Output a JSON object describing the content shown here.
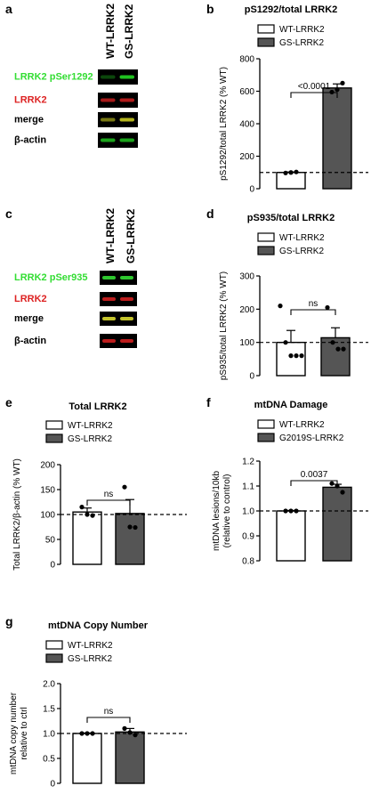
{
  "panel_labels": [
    "a",
    "b",
    "c",
    "d",
    "e",
    "f",
    "g"
  ],
  "blot_a": {
    "lanes": [
      "WT-LRRK2",
      "GS-LRRK2"
    ],
    "rows": [
      {
        "label": "LRRK2 pSer1292",
        "color": "#33dd33",
        "band": "#22cc22",
        "intensity": [
          0.35,
          0.95
        ]
      },
      {
        "label": "LRRK2",
        "color": "#dd2222",
        "band": "#dd2222",
        "intensity": [
          0.75,
          0.8
        ]
      },
      {
        "label": "merge",
        "color": "#000000",
        "band": "#c8c820",
        "intensity": [
          0.6,
          0.9
        ]
      },
      {
        "label": "β-actin",
        "color": "#000000",
        "band": "#22cc22",
        "intensity": [
          0.8,
          0.8
        ]
      }
    ]
  },
  "blot_c": {
    "lanes": [
      "WT-LRRK2",
      "GS-LRRK2"
    ],
    "rows": [
      {
        "label": "LRRK2 pSer935",
        "color": "#33dd33",
        "band": "#33dd33",
        "intensity": [
          0.9,
          0.9
        ]
      },
      {
        "label": "LRRK2",
        "color": "#dd2222",
        "band": "#dd2222",
        "intensity": [
          0.85,
          0.85
        ]
      },
      {
        "label": "merge",
        "color": "#000000",
        "band": "#d8d830",
        "intensity": [
          0.9,
          0.9
        ]
      },
      {
        "label": "β-actin",
        "color": "#000000",
        "band": "#dd2222",
        "intensity": [
          0.85,
          0.85
        ]
      }
    ]
  },
  "chart_data": [
    {
      "panel": "b",
      "type": "bar",
      "title": "pS1292/total LRRK2",
      "ylabel": "pS1292/total LRRK2 (% WT)",
      "ylim": [
        0,
        800
      ],
      "yticks": [
        0,
        200,
        400,
        600,
        800
      ],
      "reference_line": 100,
      "categories": [
        "WT-LRRK2",
        "GS-LRRK2"
      ],
      "values": [
        100,
        620
      ],
      "errors": [
        3,
        25
      ],
      "points": [
        [
          97,
          100,
          103
        ],
        [
          595,
          610,
          650
        ]
      ],
      "fills": [
        "#ffffff",
        "#555555"
      ],
      "legend": [
        "WT-LRRK2",
        "GS-LRRK2"
      ],
      "comparison": "<0.0001"
    },
    {
      "panel": "d",
      "type": "bar",
      "title": "pS935/total LRRK2",
      "ylabel": "pS935/total LRRK2 (% WT)",
      "ylim": [
        0,
        300
      ],
      "yticks": [
        0,
        100,
        200,
        300
      ],
      "reference_line": 100,
      "categories": [
        "WT-LRRK2",
        "GS-LRRK2"
      ],
      "values": [
        100,
        114
      ],
      "errors": [
        36,
        30
      ],
      "points": [
        [
          210,
          100,
          60,
          60,
          60
        ],
        [
          205,
          100,
          80,
          80
        ]
      ],
      "fills": [
        "#ffffff",
        "#555555"
      ],
      "legend": [
        "WT-LRRK2",
        "GS-LRRK2"
      ],
      "comparison": "ns"
    },
    {
      "panel": "e",
      "type": "bar",
      "title": "Total LRRK2",
      "ylabel": "Total LRRK2/β-actin (% WT)",
      "ylim": [
        0,
        200
      ],
      "yticks": [
        0,
        50,
        100,
        150,
        200
      ],
      "reference_line": 100,
      "categories": [
        "WT-LRRK2",
        "GS-LRRK2"
      ],
      "values": [
        105,
        102
      ],
      "errors": [
        8,
        28
      ],
      "points": [
        [
          115,
          100,
          98
        ],
        [
          155,
          75,
          74
        ]
      ],
      "fills": [
        "#ffffff",
        "#555555"
      ],
      "legend": [
        "WT-LRRK2",
        "GS-LRRK2"
      ],
      "comparison": "ns"
    },
    {
      "panel": "f",
      "type": "bar",
      "title": "mtDNA Damage",
      "ylabel": "mtDNA lesions/10kb",
      "ylabel2": "(relative to control)",
      "ylim": [
        0.8,
        1.2
      ],
      "yticks": [
        0.8,
        0.9,
        1.0,
        1.1,
        1.2
      ],
      "reference_line": 1.0,
      "categories": [
        "WT-LRRK2",
        "G2019S-LRRK2"
      ],
      "values": [
        1.0,
        1.095
      ],
      "errors": [
        0.002,
        0.012
      ],
      "points": [
        [
          1.0,
          1.0,
          1.0
        ],
        [
          1.11,
          1.1,
          1.075
        ]
      ],
      "fills": [
        "#ffffff",
        "#555555"
      ],
      "legend": [
        "WT-LRRK2",
        "G2019S-LRRK2"
      ],
      "comparison": "0.0037"
    },
    {
      "panel": "g",
      "type": "bar",
      "title": "mtDNA Copy Number",
      "ylabel": "mtDNA copy number",
      "ylabel2": "relative to ctrl",
      "ylim": [
        0,
        2.0
      ],
      "yticks": [
        0,
        0.5,
        1.0,
        1.5,
        2.0
      ],
      "reference_line": 1.0,
      "categories": [
        "WT-LRRK2",
        "GS-LRRK2"
      ],
      "values": [
        1.0,
        1.03
      ],
      "errors": [
        0.01,
        0.07
      ],
      "points": [
        [
          1.0,
          1.0,
          1.0
        ],
        [
          1.1,
          1.02,
          0.97
        ]
      ],
      "fills": [
        "#ffffff",
        "#555555"
      ],
      "legend": [
        "WT-LRRK2",
        "GS-LRRK2"
      ],
      "comparison": "ns"
    }
  ]
}
